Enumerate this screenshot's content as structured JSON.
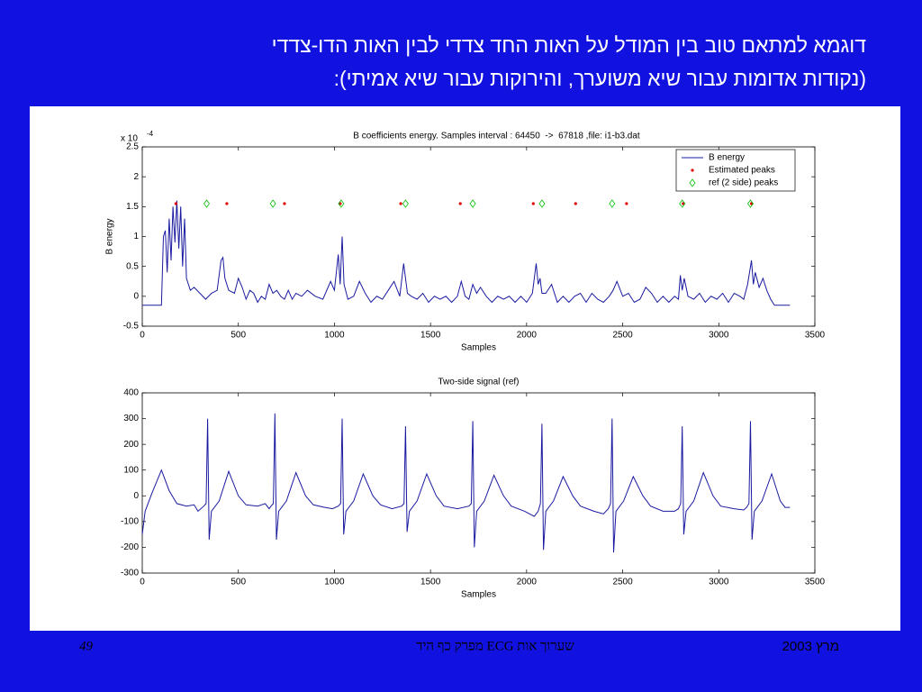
{
  "slide": {
    "title_lines": [
      "דוגמא למתאם טוב בין המודל על האות החד צדדי לבין האות הדו-צדדי",
      "(נקודות אדומות עבור שיא משוערך, והירוקות עבור שיא אמיתי):"
    ],
    "page_number": "49",
    "footer": "שערוך אות ECG מפרק כף היד",
    "date": "מרץ 2003"
  },
  "chart_data": [
    {
      "type": "line",
      "title": "B coefficients energy. Samples interval : 64450  ->  67818 ,file: i1-b3.dat",
      "x_label": "Samples",
      "y_label": "B energy",
      "y_scale_label": "x 10",
      "y_scale_exponent": "-4",
      "xlim": [
        0,
        3500
      ],
      "xticks": [
        0,
        500,
        1000,
        1500,
        2000,
        2500,
        3000,
        3500
      ],
      "ylim": [
        -0.5,
        2.5
      ],
      "yticks": [
        -0.5,
        0,
        0.5,
        1,
        1.5,
        2,
        2.5
      ],
      "legend": "upper right",
      "series": [
        {
          "name": "B energy",
          "type": "line",
          "color": "#1a1aa0",
          "x": [
            0,
            100,
            110,
            120,
            130,
            140,
            150,
            160,
            170,
            180,
            190,
            200,
            210,
            220,
            230,
            250,
            270,
            300,
            330,
            360,
            390,
            410,
            420,
            430,
            450,
            480,
            500,
            520,
            540,
            560,
            580,
            600,
            620,
            640,
            660,
            680,
            700,
            720,
            740,
            760,
            780,
            800,
            830,
            860,
            900,
            940,
            980,
            1000,
            1020,
            1030,
            1040,
            1050,
            1070,
            1100,
            1130,
            1160,
            1190,
            1220,
            1250,
            1280,
            1310,
            1340,
            1360,
            1380,
            1400,
            1430,
            1460,
            1490,
            1520,
            1550,
            1580,
            1610,
            1640,
            1660,
            1680,
            1700,
            1720,
            1740,
            1760,
            1790,
            1820,
            1850,
            1880,
            1910,
            1940,
            1970,
            2000,
            2030,
            2050,
            2060,
            2070,
            2080,
            2100,
            2130,
            2160,
            2190,
            2220,
            2250,
            2280,
            2310,
            2340,
            2370,
            2400,
            2430,
            2450,
            2470,
            2500,
            2530,
            2560,
            2590,
            2620,
            2650,
            2680,
            2710,
            2740,
            2770,
            2790,
            2800,
            2810,
            2820,
            2840,
            2870,
            2900,
            2930,
            2960,
            2990,
            3020,
            3050,
            3080,
            3110,
            3130,
            3150,
            3170,
            3180,
            3190,
            3210,
            3230,
            3250,
            3270,
            3290,
            3370
          ],
          "values": [
            -0.15,
            -0.15,
            1.0,
            1.1,
            0.4,
            1.3,
            0.6,
            1.5,
            0.9,
            1.6,
            0.8,
            1.5,
            0.5,
            1.3,
            0.3,
            0.1,
            0.15,
            0.05,
            -0.05,
            0.05,
            0.1,
            0.6,
            0.65,
            0.3,
            0.1,
            0.05,
            0.3,
            0.15,
            -0.05,
            0.1,
            0.05,
            -0.1,
            0.0,
            -0.05,
            0.2,
            0.05,
            0.1,
            0.0,
            -0.05,
            0.1,
            -0.05,
            0.05,
            0.0,
            0.1,
            0.0,
            -0.05,
            0.25,
            0.1,
            0.7,
            0.2,
            1.0,
            0.2,
            -0.05,
            0.0,
            0.25,
            0.05,
            -0.1,
            0.0,
            -0.05,
            0.1,
            0.25,
            0.0,
            0.55,
            0.05,
            0.0,
            -0.05,
            0.05,
            -0.1,
            0.0,
            -0.05,
            0.0,
            -0.1,
            0.0,
            0.25,
            0.0,
            -0.05,
            0.2,
            0.05,
            0.15,
            0.0,
            -0.1,
            0.0,
            -0.05,
            0.0,
            -0.1,
            0.0,
            -0.1,
            0.05,
            0.55,
            0.2,
            0.3,
            0.05,
            0.05,
            0.2,
            -0.1,
            0.0,
            -0.1,
            0.0,
            0.05,
            -0.1,
            0.05,
            -0.05,
            -0.1,
            0.0,
            0.1,
            0.25,
            0.0,
            0.05,
            -0.1,
            -0.05,
            0.15,
            0.05,
            -0.1,
            0.0,
            -0.1,
            0.0,
            -0.05,
            0.35,
            0.1,
            0.3,
            0.0,
            -0.05,
            0.05,
            -0.1,
            0.0,
            -0.05,
            0.05,
            -0.1,
            0.05,
            0.0,
            -0.05,
            0.2,
            0.6,
            0.2,
            0.4,
            0.15,
            0.3,
            0.1,
            -0.05,
            -0.15,
            -0.15
          ]
        },
        {
          "name": "Estimated peaks",
          "type": "scatter",
          "marker": "point",
          "color": "#e00000",
          "x": [
            175,
            440,
            740,
            1030,
            1345,
            1655,
            2035,
            2255,
            2520,
            2815,
            3170
          ],
          "values": [
            1.55,
            1.55,
            1.55,
            1.55,
            1.55,
            1.55,
            1.55,
            1.55,
            1.55,
            1.55,
            1.55
          ]
        },
        {
          "name": "ref (2 side) peaks",
          "type": "scatter",
          "marker": "diamond",
          "color": "#00c000",
          "x": [
            335,
            680,
            1035,
            1370,
            1720,
            2080,
            2445,
            2810,
            3165
          ],
          "values": [
            1.55,
            1.55,
            1.55,
            1.55,
            1.55,
            1.55,
            1.55,
            1.55,
            1.55
          ]
        }
      ]
    },
    {
      "type": "line",
      "title": "Two-side signal (ref)",
      "x_label": "Samples",
      "xlim": [
        0,
        3500
      ],
      "xticks": [
        0,
        500,
        1000,
        1500,
        2000,
        2500,
        3000,
        3500
      ],
      "ylim": [
        -300,
        400
      ],
      "yticks": [
        -300,
        -200,
        -100,
        0,
        100,
        200,
        300,
        400
      ],
      "series": [
        {
          "type": "line",
          "color": "#1a1aa0",
          "x": [
            0,
            15,
            50,
            100,
            140,
            180,
            230,
            270,
            290,
            320,
            332,
            340,
            348,
            360,
            400,
            450,
            500,
            540,
            600,
            640,
            660,
            670,
            682,
            690,
            698,
            710,
            750,
            800,
            850,
            890,
            950,
            990,
            1020,
            1032,
            1040,
            1048,
            1060,
            1100,
            1150,
            1200,
            1240,
            1300,
            1350,
            1362,
            1370,
            1378,
            1390,
            1430,
            1480,
            1530,
            1570,
            1640,
            1700,
            1712,
            1720,
            1728,
            1740,
            1780,
            1830,
            1880,
            1920,
            1990,
            2040,
            2060,
            2072,
            2080,
            2088,
            2100,
            2140,
            2190,
            2240,
            2280,
            2350,
            2400,
            2425,
            2437,
            2445,
            2453,
            2465,
            2505,
            2555,
            2605,
            2645,
            2710,
            2770,
            2790,
            2802,
            2810,
            2818,
            2830,
            2870,
            2920,
            2970,
            3010,
            3080,
            3130,
            3145,
            3157,
            3165,
            3173,
            3185,
            3225,
            3275,
            3320,
            3345,
            3370
          ],
          "values": [
            -150,
            -60,
            10,
            100,
            20,
            -30,
            -40,
            -35,
            -60,
            -40,
            -30,
            300,
            -170,
            -60,
            -20,
            95,
            0,
            -35,
            -40,
            -30,
            -50,
            -40,
            -30,
            320,
            -170,
            -60,
            -20,
            90,
            0,
            -35,
            -45,
            -50,
            -40,
            -30,
            300,
            -150,
            -60,
            -20,
            85,
            0,
            -35,
            -50,
            -40,
            -30,
            270,
            -140,
            -60,
            -20,
            85,
            0,
            -40,
            -50,
            -40,
            -30,
            290,
            -200,
            -60,
            -20,
            80,
            0,
            -40,
            -60,
            -80,
            -60,
            -30,
            280,
            -210,
            -60,
            -20,
            75,
            0,
            -40,
            -60,
            -70,
            -50,
            -30,
            300,
            -220,
            -60,
            -20,
            75,
            0,
            -40,
            -60,
            -60,
            -50,
            -30,
            270,
            -150,
            -60,
            -20,
            90,
            0,
            -40,
            -50,
            -55,
            -45,
            -30,
            290,
            -170,
            -60,
            -20,
            85,
            -20,
            -45,
            -45
          ]
        }
      ]
    }
  ]
}
